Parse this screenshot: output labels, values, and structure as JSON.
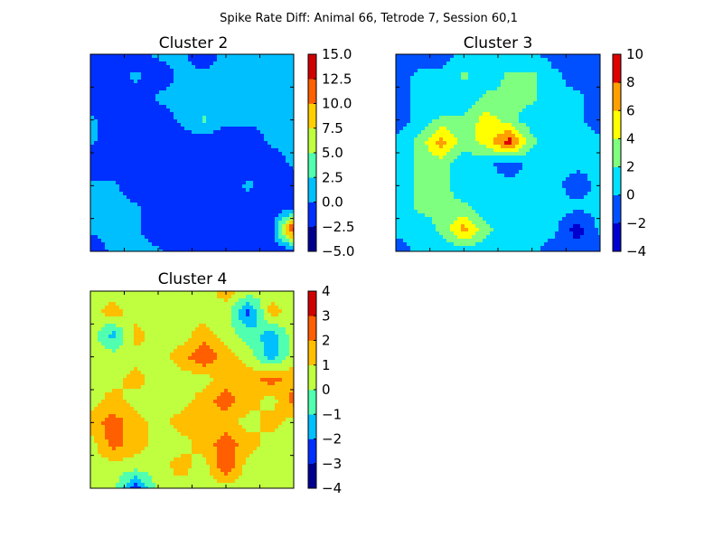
{
  "title": "Spike Rate Diff: Animal 66, Tetrode 7, Session 60,1",
  "colorscale": [
    "#00008f",
    "#0000ff",
    "#005fff",
    "#00bfff",
    "#20ffdf",
    "#7fff7f",
    "#dfff20",
    "#ffbf00",
    "#ff5f00",
    "#ef0000",
    "#800000"
  ],
  "chart_data": [
    {
      "type": "heatmap",
      "title": "Cluster 2",
      "grid": false,
      "colorbar_ticks": [
        "15.0",
        "12.5",
        "10.0",
        "7.5",
        "5.0",
        "2.5",
        "0.0",
        "−2.5",
        "−5.0"
      ],
      "levels": [
        -5.0,
        -2.5,
        0.0,
        2.5,
        5.0,
        7.5,
        10.0,
        12.5,
        15.0
      ],
      "level_colors": [
        "#00008f",
        "#0030ff",
        "#00bfff",
        "#50ffaf",
        "#bfff40",
        "#ffcf00",
        "#ff6000",
        "#cf0000"
      ],
      "xlim": [
        0,
        9
      ],
      "ylim": [
        0,
        9
      ],
      "z": [
        [
          -1.5,
          -1.5,
          -1.5,
          0.5,
          0.5,
          -1.5,
          0.8,
          0.5,
          0.5,
          0.5
        ],
        [
          -1.5,
          -1.5,
          0.5,
          -1.5,
          0.5,
          0.5,
          0.5,
          0.5,
          0.5,
          0.5
        ],
        [
          -1.5,
          -1.5,
          -1.5,
          0.5,
          0.5,
          0.5,
          0.5,
          0.5,
          0.5,
          0.5
        ],
        [
          0.5,
          -1.5,
          -1.5,
          -1.5,
          0.5,
          3.0,
          0.5,
          0.5,
          0.5,
          0.5
        ],
        [
          0.5,
          -1.5,
          -1.5,
          -1.5,
          -1.5,
          -1.5,
          -1.5,
          -1.5,
          0.5,
          0.5
        ],
        [
          -1.5,
          -1.5,
          -1.5,
          -1.5,
          -1.5,
          -1.5,
          -1.5,
          -1.5,
          -1.5,
          0.5
        ],
        [
          0.5,
          0.5,
          -1.5,
          -1.5,
          -1.5,
          -1.5,
          -1.5,
          0.5,
          -1.5,
          -1.5
        ],
        [
          0.5,
          0.5,
          0.5,
          -1.5,
          -1.5,
          -1.5,
          -1.5,
          -1.5,
          -1.5,
          -1.5
        ],
        [
          0.5,
          0.5,
          0.5,
          -1.5,
          -1.5,
          -1.5,
          -1.5,
          -1.5,
          -1.5,
          14.0
        ],
        [
          -1.5,
          0.5,
          0.5,
          0.5,
          -1.5,
          -1.5,
          -1.5,
          -1.5,
          -1.5,
          -1.5
        ]
      ]
    },
    {
      "type": "heatmap",
      "title": "Cluster 3",
      "grid": false,
      "colorbar_ticks": [
        "10",
        "8",
        "6",
        "4",
        "2",
        "0",
        "−2",
        "−4"
      ],
      "levels": [
        -4,
        -2,
        0,
        2,
        4,
        6,
        8,
        10
      ],
      "level_colors": [
        "#0000cf",
        "#0050ff",
        "#00e0ff",
        "#7fff7f",
        "#ffff00",
        "#ff9f00",
        "#df0000"
      ],
      "xlim": [
        0,
        9
      ],
      "ylim": [
        0,
        9
      ],
      "z": [
        [
          -1.0,
          -1.0,
          -1.0,
          0.5,
          0.5,
          0.5,
          0.5,
          -1.0,
          -1.0,
          -1.0
        ],
        [
          -1.0,
          0.5,
          0.5,
          2.5,
          0.5,
          2.5,
          2.5,
          0.5,
          -1.0,
          -1.0
        ],
        [
          -1.0,
          0.5,
          0.5,
          0.5,
          2.5,
          2.5,
          2.5,
          0.5,
          0.5,
          -1.0
        ],
        [
          -1.0,
          0.5,
          2.5,
          2.5,
          5.0,
          3.0,
          0.5,
          0.5,
          0.5,
          -1.0
        ],
        [
          0.5,
          2.5,
          7.0,
          3.0,
          5.0,
          9.0,
          2.5,
          0.5,
          0.5,
          0.5
        ],
        [
          0.5,
          2.5,
          3.0,
          0.5,
          0.5,
          -1.0,
          0.5,
          0.5,
          0.5,
          0.5
        ],
        [
          0.5,
          2.5,
          3.0,
          0.5,
          0.5,
          0.5,
          0.5,
          0.5,
          -1.0,
          0.5
        ],
        [
          0.5,
          2.5,
          2.5,
          2.5,
          0.5,
          0.5,
          0.5,
          0.5,
          0.5,
          0.5
        ],
        [
          0.5,
          0.5,
          2.5,
          7.0,
          2.5,
          0.5,
          0.5,
          0.5,
          -3.0,
          0.5
        ],
        [
          -1.0,
          0.5,
          0.5,
          0.5,
          0.5,
          0.5,
          0.5,
          -1.0,
          -1.0,
          -1.0
        ]
      ]
    },
    {
      "type": "heatmap",
      "title": "Cluster 4",
      "grid": false,
      "colorbar_ticks": [
        "4",
        "3",
        "2",
        "1",
        "0",
        "−1",
        "−2",
        "−3",
        "−4"
      ],
      "levels": [
        -4,
        -3,
        -2,
        -1,
        0,
        1,
        2,
        3,
        4
      ],
      "level_colors": [
        "#00008f",
        "#0030ff",
        "#00bfff",
        "#50ffaf",
        "#bfff40",
        "#ffbf00",
        "#ff5f00",
        "#cf0000"
      ],
      "xlim": [
        0,
        9
      ],
      "ylim": [
        0,
        9
      ],
      "z": [
        [
          0.5,
          0.5,
          0.5,
          0.5,
          0.5,
          0.5,
          1.5,
          0.5,
          0.5,
          0.5
        ],
        [
          0.5,
          1.5,
          0.5,
          0.5,
          0.5,
          0.5,
          0.5,
          -2.5,
          1.5,
          0.5
        ],
        [
          0.5,
          -1.5,
          1.5,
          0.5,
          0.5,
          1.5,
          0.5,
          -0.5,
          -1.5,
          0.5
        ],
        [
          0.5,
          0.5,
          0.5,
          0.5,
          1.5,
          3.0,
          1.5,
          0.5,
          -1.5,
          0.5
        ],
        [
          0.5,
          0.5,
          1.5,
          0.5,
          0.5,
          0.5,
          1.5,
          1.5,
          2.5,
          1.5
        ],
        [
          0.5,
          1.5,
          0.5,
          0.5,
          0.5,
          1.5,
          2.5,
          1.5,
          0.5,
          2.5
        ],
        [
          1.5,
          2.5,
          1.5,
          0.5,
          1.5,
          1.5,
          1.5,
          0.5,
          1.5,
          0.5
        ],
        [
          0.5,
          2.5,
          1.5,
          0.5,
          0.5,
          1.5,
          2.5,
          1.5,
          0.5,
          0.5
        ],
        [
          0.5,
          0.5,
          0.5,
          0.5,
          1.5,
          0.5,
          3.0,
          0.5,
          0.5,
          0.5
        ],
        [
          0.5,
          0.5,
          -2.5,
          0.5,
          0.5,
          0.5,
          0.5,
          0.5,
          0.5,
          0.5
        ]
      ]
    }
  ]
}
